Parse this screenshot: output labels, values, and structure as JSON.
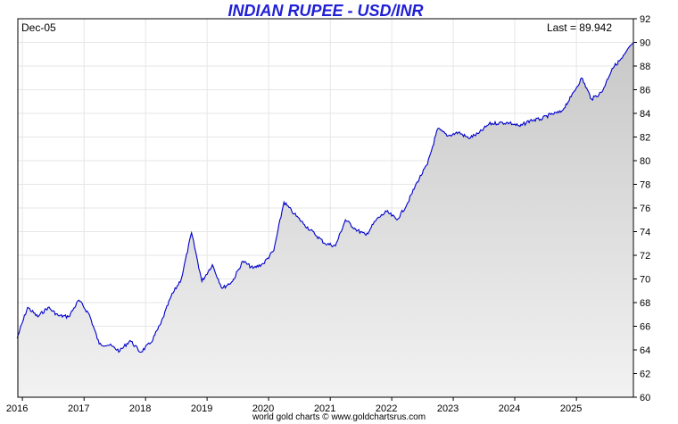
{
  "chart_data": {
    "type": "area",
    "title": "INDIAN RUPEE - USD/INR",
    "corner_left": "Dec-05",
    "corner_right": "Last = 89.942",
    "footer": "world gold charts © www.goldchartsrus.com",
    "x_ticks": [
      "2016",
      "2017",
      "2018",
      "2019",
      "2020",
      "2021",
      "2022",
      "2023",
      "2024",
      "2025"
    ],
    "y_ticks": [
      60,
      62,
      64,
      66,
      68,
      70,
      72,
      74,
      76,
      78,
      80,
      82,
      84,
      86,
      88,
      90,
      92
    ],
    "xlim": [
      "2015-12-05",
      "2025-12-05"
    ],
    "ylim": [
      60,
      92
    ],
    "grid": true,
    "colors": {
      "line": "#0000cc",
      "area_top": "#c8c8c8",
      "area_bottom": "#f2f2f2",
      "title": "#1f1fd6"
    },
    "x": [
      "2015-12",
      "2016-02",
      "2016-04",
      "2016-06",
      "2016-08",
      "2016-10",
      "2016-12",
      "2017-02",
      "2017-04",
      "2017-06",
      "2017-08",
      "2017-10",
      "2017-12",
      "2018-02",
      "2018-04",
      "2018-06",
      "2018-08",
      "2018-10",
      "2018-12",
      "2019-02",
      "2019-04",
      "2019-06",
      "2019-08",
      "2019-10",
      "2019-12",
      "2020-02",
      "2020-04",
      "2020-06",
      "2020-08",
      "2020-10",
      "2020-12",
      "2021-02",
      "2021-04",
      "2021-06",
      "2021-08",
      "2021-10",
      "2021-12",
      "2022-02",
      "2022-04",
      "2022-06",
      "2022-08",
      "2022-10",
      "2022-12",
      "2023-02",
      "2023-04",
      "2023-06",
      "2023-08",
      "2023-10",
      "2023-12",
      "2024-02",
      "2024-04",
      "2024-06",
      "2024-08",
      "2024-10",
      "2024-12",
      "2025-02",
      "2025-04",
      "2025-06",
      "2025-08",
      "2025-10",
      "2025-12"
    ],
    "values": [
      65.0,
      67.6,
      66.8,
      67.6,
      66.9,
      66.8,
      68.2,
      67.0,
      64.5,
      64.4,
      63.9,
      64.8,
      63.8,
      64.6,
      66.2,
      68.5,
      70.0,
      73.9,
      69.8,
      71.2,
      69.2,
      69.8,
      71.5,
      70.9,
      71.3,
      72.4,
      76.5,
      75.5,
      74.6,
      73.8,
      73.0,
      72.8,
      75.0,
      74.2,
      73.7,
      75.0,
      75.7,
      75.0,
      76.3,
      78.2,
      79.7,
      82.7,
      82.1,
      82.4,
      81.9,
      82.3,
      83.1,
      83.2,
      83.2,
      82.9,
      83.4,
      83.5,
      83.9,
      84.1,
      85.4,
      87.0,
      85.2,
      85.8,
      87.8,
      88.7,
      89.94
    ]
  }
}
